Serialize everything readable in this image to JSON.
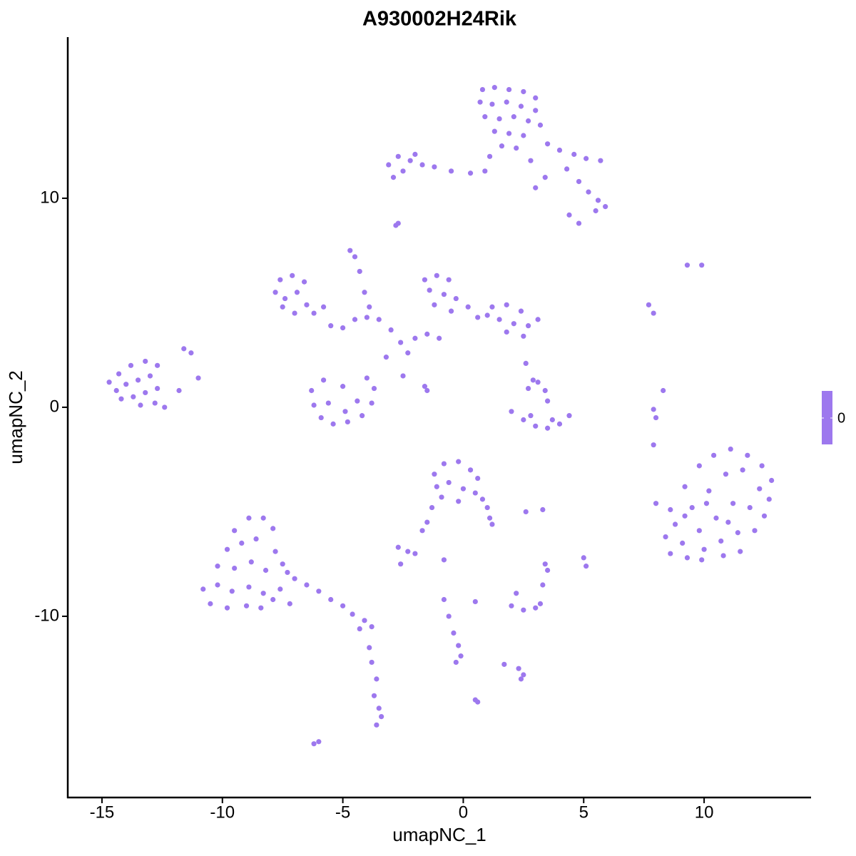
{
  "chart_data": {
    "type": "scatter",
    "title": "A930002H24Rik",
    "x_label": "umapNC_1",
    "y_label": "umapNC_2",
    "color": "#9d78ee",
    "colorbar_ticks": [
      0
    ],
    "xlim": [
      -16.42,
      14.44
    ],
    "ylim": [
      -18.67,
      17.71
    ],
    "xticks": [
      -15,
      -10,
      -5,
      0,
      5,
      10
    ],
    "yticks": [
      -10,
      0,
      10
    ],
    "grid": false,
    "x": [
      0.8,
      1.3,
      1.9,
      2.5,
      3.0,
      0.7,
      1.2,
      1.8,
      2.4,
      3.0,
      0.9,
      1.5,
      2.1,
      2.7,
      3.2,
      1.3,
      1.9,
      2.5,
      1.6,
      2.2,
      3.5,
      4.0,
      4.6,
      5.1,
      5.7,
      4.3,
      4.8,
      5.2,
      5.6,
      5.9,
      5.5,
      4.4,
      4.8,
      3.0,
      3.4,
      2.8,
      1.1,
      0.9,
      0.3,
      -0.5,
      -1.2,
      -1.7,
      -2.2,
      -2.7,
      -3.1,
      -2.5,
      -2.9,
      -2.0,
      -2.8,
      -2.7,
      -4.7,
      -4.5,
      -4.3,
      -4.1,
      -3.9,
      -7.6,
      -7.1,
      -6.6,
      -7.8,
      -7.4,
      -6.9,
      -6.5,
      -7.5,
      -7.0,
      -6.2,
      -5.5,
      -5.0,
      -4.5,
      -4.0,
      -3.5,
      -3.0,
      -2.6,
      -2.3,
      -3.2,
      -2.0,
      -1.5,
      -1.0,
      -5.8,
      -2.5,
      -1.6,
      -1.5,
      -1.6,
      -1.1,
      -0.6,
      -1.4,
      -0.8,
      -0.3,
      -1.2,
      -0.5,
      0.2,
      0.6,
      1.2,
      1.8,
      2.4,
      1.5,
      2.1,
      2.7,
      1.8,
      2.5,
      1.0,
      3.1,
      -14.7,
      -14.3,
      -13.8,
      -13.2,
      -12.7,
      -14.4,
      -14.0,
      -13.5,
      -13.0,
      -14.2,
      -13.7,
      -13.2,
      -12.7,
      -13.4,
      -12.8,
      -12.4,
      -11.8,
      -11.6,
      -11.3,
      -11.0,
      -6.3,
      -6.2,
      -5.9,
      -5.4,
      -4.8,
      -4.2,
      -3.8,
      -3.7,
      -4.0,
      -5.6,
      -4.9,
      -4.4,
      -5.8,
      -5.0,
      2.0,
      2.5,
      3.0,
      3.5,
      4.0,
      4.4,
      2.8,
      3.7,
      3.1,
      3.4,
      3.5,
      2.7,
      2.9,
      2.6,
      9.3,
      9.9,
      7.7,
      7.9,
      8.3,
      7.9,
      8.0,
      7.9,
      8.0,
      8.6,
      9.2,
      9.8,
      10.4,
      11.1,
      11.8,
      12.4,
      12.8,
      8.8,
      9.5,
      10.2,
      10.9,
      11.6,
      12.3,
      12.7,
      8.4,
      9.1,
      9.8,
      10.5,
      11.2,
      11.9,
      12.5,
      8.6,
      9.3,
      10.0,
      10.7,
      11.4,
      12.1,
      9.9,
      10.8,
      11.5,
      9.2,
      10.1,
      11.0,
      -1.2,
      -0.8,
      -0.2,
      0.3,
      0.6,
      -1.1,
      -0.6,
      0.0,
      0.5,
      -0.9,
      -0.2,
      0.8,
      1.0,
      1.1,
      1.2,
      -1.3,
      -1.5,
      -1.7,
      -2.7,
      -2.3,
      -2.0,
      -2.6,
      2.6,
      3.3,
      -0.8,
      -9.5,
      -8.9,
      -8.3,
      -7.9,
      -9.8,
      -9.2,
      -8.6,
      -7.8,
      -7.5,
      -10.2,
      -9.5,
      -8.8,
      -8.2,
      -7.3,
      -10.8,
      -10.2,
      -9.6,
      -8.9,
      -8.3,
      -7.6,
      -10.5,
      -9.8,
      -9.0,
      -8.4,
      -7.9,
      -7.2,
      -7.0,
      -6.5,
      -6.0,
      -5.5,
      -5.0,
      -4.6,
      -4.1,
      -3.8,
      -4.3,
      -3.9,
      -3.8,
      -3.6,
      -3.7,
      -3.5,
      -3.4,
      -3.6,
      0.5,
      -0.8,
      -0.6,
      -0.4,
      -0.2,
      -0.1,
      -0.3,
      2.0,
      2.5,
      3.0,
      3.2,
      2.2,
      3.4,
      3.5,
      5.0,
      5.1,
      1.7,
      2.3,
      2.5,
      2.4,
      0.5,
      0.6,
      -6.0,
      -6.2,
      3.3
    ],
    "values": [
      15.2,
      15.3,
      15.2,
      15.1,
      14.8,
      14.6,
      14.5,
      14.6,
      14.4,
      14.2,
      13.9,
      13.8,
      13.9,
      13.7,
      13.5,
      13.2,
      13.1,
      13.0,
      12.5,
      12.4,
      12.6,
      12.3,
      12.1,
      11.9,
      11.8,
      11.4,
      10.8,
      10.3,
      9.9,
      9.6,
      9.4,
      9.2,
      8.8,
      10.5,
      11.0,
      11.8,
      12.0,
      11.3,
      11.2,
      11.3,
      11.5,
      11.6,
      11.8,
      12.0,
      11.6,
      11.3,
      11.0,
      12.1,
      8.7,
      8.8,
      7.5,
      7.2,
      6.5,
      5.5,
      4.8,
      6.1,
      6.3,
      6.0,
      5.5,
      5.2,
      5.5,
      4.9,
      4.8,
      4.5,
      4.5,
      3.9,
      3.8,
      4.2,
      4.3,
      4.2,
      3.7,
      3.1,
      2.6,
      2.4,
      3.3,
      3.5,
      3.3,
      4.8,
      1.5,
      1.0,
      0.8,
      6.1,
      6.3,
      6.1,
      5.6,
      5.4,
      5.2,
      4.9,
      4.6,
      4.8,
      4.3,
      4.8,
      4.9,
      4.6,
      4.2,
      4.0,
      3.9,
      3.6,
      3.4,
      4.4,
      4.2,
      1.2,
      1.6,
      2.0,
      2.2,
      2.0,
      0.8,
      1.1,
      1.3,
      1.5,
      0.4,
      0.5,
      0.7,
      0.9,
      0.1,
      0.2,
      0.0,
      0.8,
      2.8,
      2.6,
      1.4,
      0.8,
      0.1,
      -0.5,
      -0.8,
      -0.7,
      -0.4,
      0.2,
      0.9,
      1.4,
      0.2,
      -0.2,
      0.3,
      1.3,
      1.0,
      -0.2,
      -0.6,
      -0.9,
      -1.0,
      -0.8,
      -0.4,
      -0.4,
      -0.6,
      1.2,
      0.8,
      0.3,
      0.9,
      1.3,
      2.1,
      6.8,
      6.8,
      4.9,
      4.5,
      0.8,
      -0.1,
      -0.5,
      -1.8,
      -4.6,
      -4.9,
      -3.8,
      -2.8,
      -2.3,
      -2.0,
      -2.3,
      -2.8,
      -3.5,
      -5.6,
      -4.8,
      -4.0,
      -3.2,
      -3.0,
      -3.9,
      -4.4,
      -6.2,
      -6.5,
      -5.9,
      -5.3,
      -4.6,
      -4.8,
      -5.2,
      -7.0,
      -7.2,
      -6.8,
      -6.4,
      -6.0,
      -5.9,
      -7.3,
      -7.1,
      -6.9,
      -5.2,
      -4.6,
      -5.5,
      -3.2,
      -2.7,
      -2.6,
      -3.0,
      -3.4,
      -3.8,
      -3.6,
      -3.9,
      -4.1,
      -4.3,
      -4.5,
      -4.4,
      -4.8,
      -5.3,
      -5.6,
      -4.8,
      -5.5,
      -5.9,
      -6.7,
      -6.9,
      -7.0,
      -7.5,
      -5.0,
      -4.9,
      -7.3,
      -5.9,
      -5.3,
      -5.3,
      -5.8,
      -6.8,
      -6.5,
      -6.3,
      -6.9,
      -7.5,
      -7.6,
      -7.7,
      -7.4,
      -7.8,
      -7.9,
      -8.7,
      -8.5,
      -8.8,
      -8.6,
      -8.9,
      -8.7,
      -9.4,
      -9.6,
      -9.5,
      -9.6,
      -9.2,
      -9.4,
      -8.2,
      -8.5,
      -8.8,
      -9.2,
      -9.5,
      -9.9,
      -10.2,
      -10.5,
      -10.6,
      -11.5,
      -12.2,
      -13.0,
      -13.8,
      -14.4,
      -14.8,
      -15.2,
      -9.3,
      -9.2,
      -10.0,
      -10.8,
      -11.4,
      -11.9,
      -12.2,
      -9.5,
      -9.7,
      -9.6,
      -9.4,
      -8.9,
      -7.5,
      -7.8,
      -7.2,
      -7.6,
      -12.3,
      -12.5,
      -12.8,
      -13.0,
      -14.0,
      -14.1,
      -16.0,
      -16.1,
      -8.5
    ]
  }
}
